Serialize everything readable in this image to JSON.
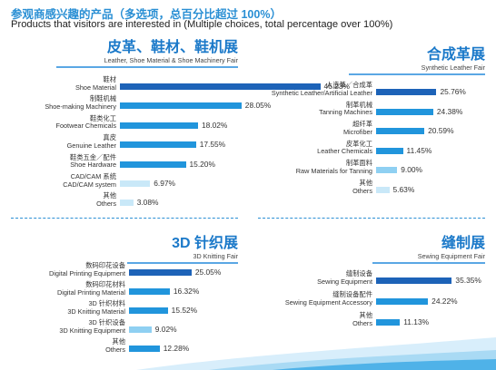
{
  "header": {
    "title_cn": "参观商感兴趣的产品（多选项，总百分比超过 100%）",
    "title_en": "Products that visitors are interested in (Multiple choices, total percentage over 100%)"
  },
  "colors": {
    "strong": "#1d63b8",
    "medium": "#2195dc",
    "light": "#8fd0f2",
    "pale": "#c9e8f8",
    "rule": "#5aa7e4"
  },
  "chart_data": [
    {
      "type": "bar",
      "title": "皮革、鞋材、鞋机展",
      "subtitle": "Leather, Shoe Material & Shoe Machinery Fair",
      "categories": [
        [
          "鞋材",
          "Shoe Material"
        ],
        [
          "制鞋机械",
          "Shoe-making Machinery"
        ],
        [
          "鞋类化工",
          "Footwear Chemicals"
        ],
        [
          "真皮",
          "Genuine Leather"
        ],
        [
          "鞋类五金／配件",
          "Shoe Hardware"
        ],
        [
          "CAD/CAM 系统",
          "CAD/CAM system"
        ],
        [
          "其他",
          "Others"
        ]
      ],
      "values": [
        46.23,
        28.05,
        18.02,
        17.55,
        15.2,
        6.97,
        3.08
      ],
      "value_labels": [
        "46.23%",
        "28.05%",
        "18.02%",
        "17.55%",
        "15.20%",
        "6.97%",
        "3.08%"
      ],
      "xlim": [
        0,
        50
      ]
    },
    {
      "type": "bar",
      "title": "合成革展",
      "subtitle": "Synthetic Leather Fair",
      "categories": [
        [
          "人造革／合成革",
          "Synthetic Leather/Artificial Leather"
        ],
        [
          "制革机械",
          "Tanning Machines"
        ],
        [
          "超纤革",
          "Microfiber"
        ],
        [
          "皮革化工",
          "Leather Chemicals"
        ],
        [
          "制革面料",
          "Raw Materials for Tanning"
        ],
        [
          "其他",
          "Others"
        ]
      ],
      "values": [
        25.76,
        24.38,
        20.59,
        11.45,
        9.0,
        5.63
      ],
      "value_labels": [
        "25.76%",
        "24.38%",
        "20.59%",
        "11.45%",
        "9.00%",
        "5.63%"
      ],
      "xlim": [
        0,
        27
      ]
    },
    {
      "type": "bar",
      "title": "3D 针织展",
      "subtitle": "3D Knitting Fair",
      "categories": [
        [
          "数码印花设备",
          "Digital Printing Equipment"
        ],
        [
          "数码印花材料",
          "Digital Printing Material"
        ],
        [
          "3D 针织材料",
          "3D Knitting Material"
        ],
        [
          "3D 针织设备",
          "3D Knitting Equipment"
        ],
        [
          "其他",
          "Others"
        ]
      ],
      "values": [
        25.05,
        16.32,
        15.52,
        9.02,
        12.28
      ],
      "value_labels": [
        "25.05%",
        "16.32%",
        "15.52%",
        "9.02%",
        "12.28%"
      ],
      "xlim": [
        0,
        27
      ]
    },
    {
      "type": "bar",
      "title": "缝制展",
      "subtitle": "Sewing Equipment Fair",
      "categories": [
        [
          "缝制设备",
          "Sewing Equipment"
        ],
        [
          "缝制设备配件",
          "Sewing Equipment Accessory"
        ],
        [
          "其他",
          "Others"
        ]
      ],
      "values": [
        35.35,
        24.22,
        11.13
      ],
      "value_labels": [
        "35.35%",
        "24.22%",
        "11.13%"
      ],
      "xlim": [
        0,
        38
      ]
    }
  ]
}
